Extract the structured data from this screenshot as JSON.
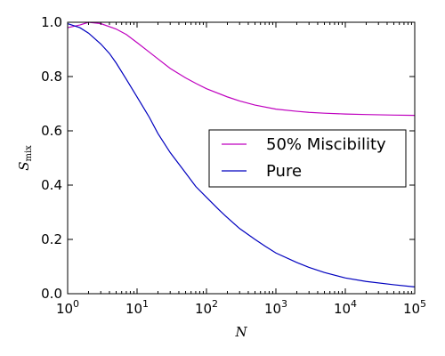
{
  "chart_data": {
    "type": "line",
    "xscale": "log",
    "xlim": [
      1,
      100000
    ],
    "ylim": [
      0.0,
      1.0
    ],
    "xlabel": "N",
    "ylabel_base": "S",
    "ylabel_sub": "mix",
    "x_ticks": [
      {
        "value": 1,
        "base": "10",
        "exp": "0"
      },
      {
        "value": 10,
        "base": "10",
        "exp": "1"
      },
      {
        "value": 100,
        "base": "10",
        "exp": "2"
      },
      {
        "value": 1000,
        "base": "10",
        "exp": "3"
      },
      {
        "value": 10000,
        "base": "10",
        "exp": "4"
      },
      {
        "value": 100000,
        "base": "10",
        "exp": "5"
      }
    ],
    "y_ticks": [
      {
        "value": 0.0,
        "label": "0.0"
      },
      {
        "value": 0.2,
        "label": "0.2"
      },
      {
        "value": 0.4,
        "label": "0.4"
      },
      {
        "value": 0.6,
        "label": "0.6"
      },
      {
        "value": 0.8,
        "label": "0.8"
      },
      {
        "value": 1.0,
        "label": "1.0"
      }
    ],
    "legend_position": "center-right",
    "series": [
      {
        "name": "50% Miscibility",
        "color": "#bf00bf",
        "x": [
          1,
          1.5,
          2,
          3,
          5,
          7,
          10,
          15,
          20,
          30,
          50,
          70,
          100,
          200,
          300,
          500,
          1000,
          2000,
          3000,
          5000,
          10000,
          20000,
          50000,
          100000
        ],
        "y": [
          0.98,
          0.99,
          1.0,
          0.995,
          0.975,
          0.955,
          0.925,
          0.89,
          0.865,
          0.83,
          0.795,
          0.775,
          0.755,
          0.725,
          0.71,
          0.695,
          0.68,
          0.672,
          0.668,
          0.665,
          0.662,
          0.66,
          0.658,
          0.657
        ]
      },
      {
        "name": "Pure",
        "color": "#0000bf",
        "x": [
          1,
          1.5,
          2,
          3,
          4,
          5,
          7,
          10,
          15,
          20,
          30,
          50,
          70,
          100,
          150,
          200,
          300,
          500,
          700,
          1000,
          2000,
          3000,
          5000,
          10000,
          20000,
          50000,
          100000
        ],
        "y": [
          0.995,
          0.98,
          0.96,
          0.92,
          0.885,
          0.85,
          0.79,
          0.725,
          0.65,
          0.59,
          0.52,
          0.445,
          0.395,
          0.355,
          0.31,
          0.28,
          0.24,
          0.2,
          0.175,
          0.15,
          0.115,
          0.097,
          0.078,
          0.058,
          0.045,
          0.033,
          0.025
        ]
      }
    ]
  }
}
